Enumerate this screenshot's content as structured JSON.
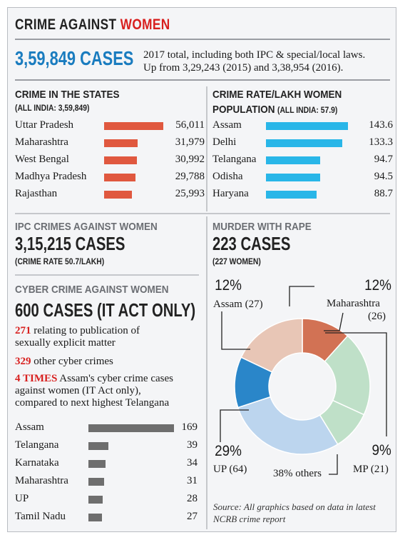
{
  "header": {
    "title_part1": "CRIME AGAINST ",
    "title_part2": "WOMEN"
  },
  "colors": {
    "accent_red": "#d8201f",
    "accent_blue": "#1a7cbf",
    "states_bar": "#e0583f",
    "rate_bar": "#29b6e8",
    "cyber_bar": "#6e6e6e",
    "pie_assam": "#2a86c9",
    "pie_others_light": "#e8c6b6",
    "pie_maharashtra": "#d27254",
    "pie_others": "#bfe0c8",
    "pie_up": "#bcd5ee"
  },
  "total": {
    "value": "3,59,849 CASES",
    "desc_line1": "2017 total, including both IPC & special/local laws.",
    "desc_line2": "Up from 3,29,243 (2015) and 3,38,954 (2016)."
  },
  "states": {
    "title": "CRIME IN THE STATES",
    "subtitle": "(ALL INDIA: 3,59,849)"
  },
  "rate": {
    "title": "CRIME RATE/LAKH WOMEN",
    "title2": "POPULATION",
    "subtitle": "(ALL INDIA: 57.9)"
  },
  "ipc": {
    "title": "IPC CRIMES AGAINST WOMEN",
    "cases": "3,15,215 CASES",
    "note": "(CRIME RATE 50.7/LAKH)"
  },
  "murder": {
    "title": "MURDER WITH RAPE",
    "cases": "223 CASES",
    "note": "(227 WOMEN)"
  },
  "cyber": {
    "title": "CYBER CRIME AGAINST WOMEN",
    "cases": "600 CASES (IT ACT ONLY)",
    "fact1_num": "271",
    "fact1_text": " relating to publication of",
    "fact1_line2": "sexually explicit matter",
    "fact2_num": "329",
    "fact2_text": " other cyber crimes",
    "fact3_num": "4 TIMES",
    "fact3_text": " Assam's cyber crime cases",
    "fact3_line2": "against women (IT Act only),",
    "fact3_line3": "compared to next highest Telangana"
  },
  "pie_labels": {
    "assam_pct": "12%",
    "assam_lbl": "Assam (27)",
    "maha_pct": "12%",
    "maha_lbl1": "Maharashtra",
    "maha_lbl2": "(26)",
    "up_pct": "29%",
    "up_lbl": "UP (64)",
    "mp_pct": "9%",
    "mp_lbl": "MP (21)",
    "others_lbl": "38% others"
  },
  "source": {
    "line1": "Source: All graphics based on data in latest",
    "line2": "NCRB crime report"
  },
  "chart_data": [
    {
      "type": "bar",
      "title": "CRIME IN THE STATES",
      "categories": [
        "Uttar Pradesh",
        "Maharashtra",
        "West Bengal",
        "Madhya Pradesh",
        "Rajasthan"
      ],
      "values": [
        56011,
        31979,
        30992,
        29788,
        25993
      ],
      "value_labels": [
        "56,011",
        "31,979",
        "30,992",
        "29,788",
        "25,993"
      ]
    },
    {
      "type": "bar",
      "title": "CRIME RATE/LAKH WOMEN POPULATION",
      "categories": [
        "Assam",
        "Delhi",
        "Telangana",
        "Odisha",
        "Haryana"
      ],
      "values": [
        143.6,
        133.3,
        94.7,
        94.5,
        88.7
      ],
      "value_labels": [
        "143.6",
        "133.3",
        "94.7",
        "94.5",
        "88.7"
      ]
    },
    {
      "type": "bar",
      "title": "CYBER CRIME AGAINST WOMEN",
      "categories": [
        "Assam",
        "Telangana",
        "Karnataka",
        "Maharashtra",
        "UP",
        "Tamil Nadu"
      ],
      "values": [
        169,
        39,
        34,
        31,
        28,
        27
      ],
      "value_labels": [
        "169",
        "39",
        "34",
        "31",
        "28",
        "27"
      ]
    },
    {
      "type": "pie",
      "title": "MURDER WITH RAPE",
      "categories": [
        "Maharashtra",
        "others",
        "MP",
        "UP",
        "Assam",
        "others"
      ],
      "values": [
        26,
        45,
        21,
        64,
        27,
        40
      ],
      "percent": [
        12,
        20,
        9,
        29,
        12,
        18
      ],
      "colors": [
        "#d27254",
        "#bfe0c8",
        "#bfe0c8",
        "#bcd5ee",
        "#2a86c9",
        "#e8c6b6"
      ]
    }
  ]
}
